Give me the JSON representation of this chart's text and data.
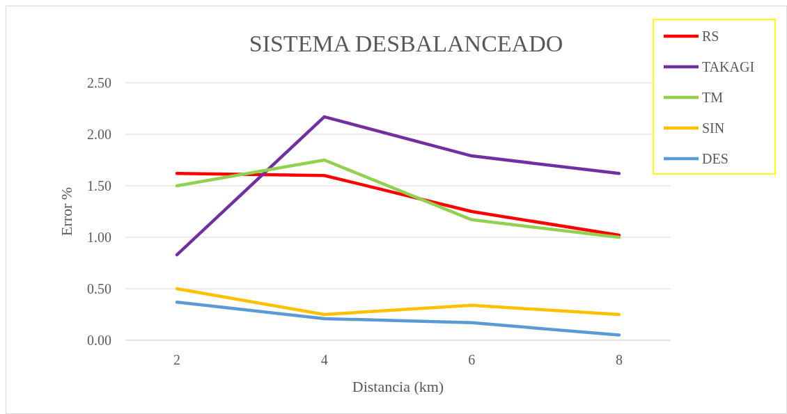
{
  "chart_data": {
    "type": "line",
    "title": "SISTEMA DESBALANCEADO",
    "xlabel": "Distancia (km)",
    "ylabel": "Error %",
    "categories": [
      "2",
      "4",
      "6",
      "8"
    ],
    "series": [
      {
        "name": "RS",
        "color": "#ff0000",
        "values": [
          1.62,
          1.6,
          1.25,
          1.02
        ]
      },
      {
        "name": "TAKAGI",
        "color": "#7030a0",
        "values": [
          0.83,
          2.17,
          1.79,
          1.62
        ]
      },
      {
        "name": "TM",
        "color": "#92d050",
        "values": [
          1.5,
          1.75,
          1.17,
          1.0
        ]
      },
      {
        "name": "SIN",
        "color": "#ffc000",
        "values": [
          0.5,
          0.25,
          0.34,
          0.25
        ]
      },
      {
        "name": "DES",
        "color": "#5b9bd5",
        "values": [
          0.37,
          0.21,
          0.17,
          0.05
        ]
      }
    ],
    "ylim": [
      0,
      2.5
    ],
    "yticks": [
      {
        "value": 0,
        "label": "0.00"
      },
      {
        "value": 0.5,
        "label": "0.50"
      },
      {
        "value": 1,
        "label": "1.00"
      },
      {
        "value": 1.5,
        "label": "1.50"
      },
      {
        "value": 2,
        "label": "2.00"
      },
      {
        "value": 2.5,
        "label": "2.50"
      }
    ],
    "grid": "y",
    "legend": "top right",
    "marker": "none",
    "line_style": "solid"
  }
}
